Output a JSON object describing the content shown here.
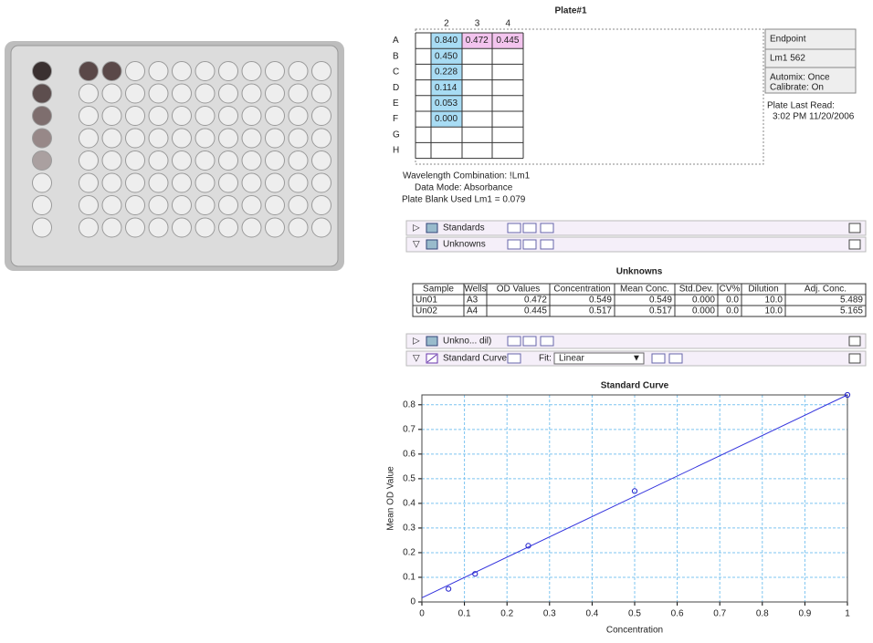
{
  "plate": {
    "title": "Plate#1",
    "columns": [
      "2",
      "3",
      "4"
    ],
    "rows": [
      "A",
      "B",
      "C",
      "D",
      "E",
      "F",
      "G",
      "H"
    ],
    "cells": [
      [
        "0.840",
        "0.472",
        "0.445"
      ],
      [
        "0.450"
      ],
      [
        "0.228"
      ],
      [
        "0.114"
      ],
      [
        "0.053"
      ],
      [
        "0.000"
      ],
      [],
      []
    ]
  },
  "info": {
    "read_mode": "Endpoint",
    "wavelength": "Lm1  562",
    "automix": "Automix: Once",
    "calibrate": "Calibrate: On",
    "last_read_label": "Plate Last Read:",
    "last_read": "3:02 PM  11/20/2006"
  },
  "plate_notes": [
    "Wavelength Combination: !Lm1",
    "Data Mode: Absorbance",
    "Plate Blank Used  Lm1 = 0.079"
  ],
  "sections": [
    "Standards",
    "Unknowns",
    "Unkno... dil)",
    "Standard Curve"
  ],
  "fit": {
    "label": "Fit:",
    "value": "Linear"
  },
  "unknowns": {
    "title": "Unknowns",
    "headers": [
      "Sample",
      "Wells",
      "OD Values",
      "Concentration",
      "Mean Conc.",
      "Std.Dev.",
      "CV%",
      "Dilution",
      "Adj. Conc."
    ],
    "rows": [
      [
        "Un01",
        "A3",
        "0.472",
        "0.549",
        "0.549",
        "0.000",
        "0.0",
        "10.0",
        "5.489"
      ],
      [
        "Un02",
        "A4",
        "0.445",
        "0.517",
        "0.517",
        "0.000",
        "0.0",
        "10.0",
        "5.165"
      ]
    ]
  },
  "chart_data": {
    "type": "scatter",
    "title": "Standard Curve",
    "x_label": "Concentration",
    "y_label": "Mean OD Value",
    "x": [
      0.0625,
      0.125,
      0.25,
      0.5,
      1
    ],
    "values": [
      0.053,
      0.114,
      0.228,
      0.45,
      0.84
    ],
    "color": "#2222cc",
    "fit_line": {
      "x": [
        0,
        1
      ],
      "values": [
        0.017,
        0.84
      ],
      "color": "#3333dd"
    },
    "xlim": [
      0,
      1
    ],
    "ylim": [
      0,
      0.84
    ],
    "xticks": [
      0,
      0.1,
      0.2,
      0.3,
      0.4,
      0.5,
      0.6,
      0.7,
      0.8,
      0.9,
      1
    ],
    "yticks": [
      0,
      0.1,
      0.2,
      0.3,
      0.4,
      0.5,
      0.6,
      0.7,
      0.8
    ],
    "grid": true
  }
}
